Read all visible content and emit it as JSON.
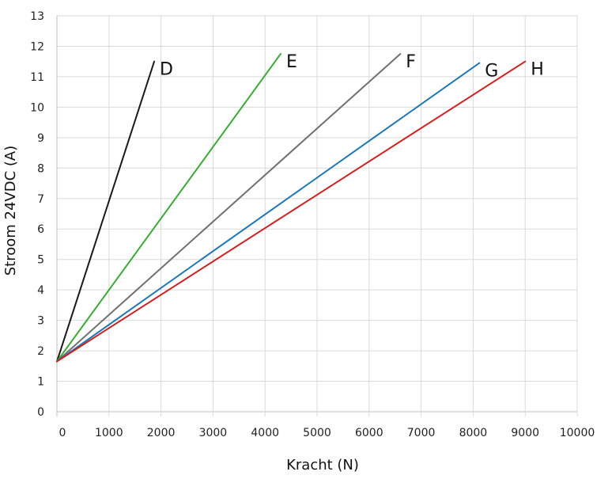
{
  "chart_data": {
    "type": "line",
    "title": "",
    "xlabel": "Kracht (N)",
    "ylabel": "Stroom 24VDC (A)",
    "xlim": [
      0,
      10000
    ],
    "ylim": [
      0,
      13
    ],
    "x_ticks": [
      0,
      1000,
      2000,
      3000,
      4000,
      5000,
      6000,
      7000,
      8000,
      9000,
      10000
    ],
    "y_ticks": [
      0,
      1,
      2,
      3,
      4,
      5,
      6,
      7,
      8,
      9,
      10,
      11,
      12,
      13
    ],
    "grid": true,
    "legend": "inline-labels",
    "series": [
      {
        "name": "D",
        "color": "#1a1a1a",
        "points": [
          [
            0,
            1.65
          ],
          [
            1870,
            11.5
          ]
        ]
      },
      {
        "name": "E",
        "color": "#3aaa35",
        "points": [
          [
            0,
            1.65
          ],
          [
            4300,
            11.75
          ]
        ]
      },
      {
        "name": "F",
        "color": "#707070",
        "points": [
          [
            0,
            1.65
          ],
          [
            6600,
            11.75
          ]
        ]
      },
      {
        "name": "G",
        "color": "#1f77b4",
        "points": [
          [
            0,
            1.65
          ],
          [
            8120,
            11.45
          ]
        ]
      },
      {
        "name": "H",
        "color": "#cc2222",
        "points": [
          [
            0,
            1.65
          ],
          [
            9000,
            11.5
          ]
        ]
      }
    ]
  }
}
